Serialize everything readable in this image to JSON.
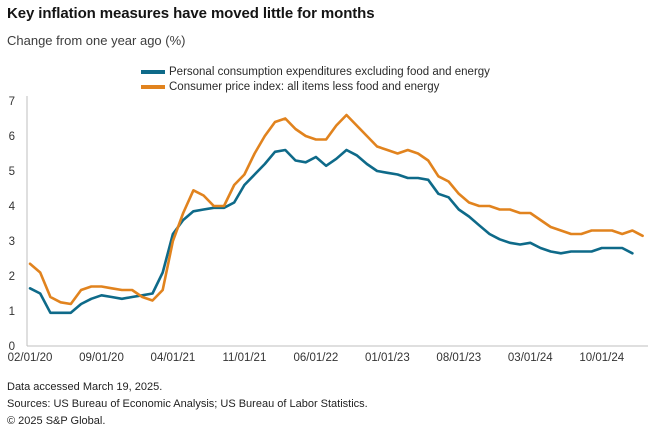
{
  "chart_data": {
    "type": "line",
    "title": "Key inflation measures have moved little for months",
    "subtitle": "Change from one year ago (%)",
    "x_start_label": "02/01/20",
    "x_tick_labels": [
      "02/01/20",
      "09/01/20",
      "04/01/21",
      "11/01/21",
      "06/01/22",
      "01/01/23",
      "08/01/23",
      "03/01/24",
      "10/01/24"
    ],
    "x_tick_interval_months": 7,
    "ylim": [
      0,
      7
    ],
    "y_ticks": [
      0,
      1,
      2,
      3,
      4,
      5,
      6,
      7
    ],
    "grid": false,
    "legend_position": "top-center",
    "axis_color": "#bfbfbf",
    "tick_label_color": "#333333",
    "series": [
      {
        "name": "Personal consumption expenditures excluding food and energy",
        "color": "#0e6a89",
        "start_month": "2020-02",
        "end_month": "2025-01",
        "values": [
          1.65,
          1.5,
          0.95,
          0.95,
          0.95,
          1.2,
          1.35,
          1.45,
          1.4,
          1.35,
          1.4,
          1.45,
          1.5,
          2.1,
          3.2,
          3.6,
          3.85,
          3.9,
          3.95,
          3.95,
          4.1,
          4.6,
          4.9,
          5.2,
          5.55,
          5.6,
          5.3,
          5.25,
          5.4,
          5.15,
          5.35,
          5.6,
          5.45,
          5.2,
          5.0,
          4.95,
          4.9,
          4.8,
          4.8,
          4.75,
          4.35,
          4.25,
          3.9,
          3.7,
          3.45,
          3.2,
          3.05,
          2.95,
          2.9,
          2.95,
          2.8,
          2.7,
          2.65,
          2.7,
          2.7,
          2.7,
          2.8,
          2.8,
          2.8,
          2.65
        ]
      },
      {
        "name": "Consumer price index: all items less food and energy",
        "color": "#e1831e",
        "start_month": "2020-02",
        "end_month": "2025-02",
        "values": [
          2.35,
          2.1,
          1.4,
          1.25,
          1.2,
          1.6,
          1.7,
          1.7,
          1.65,
          1.6,
          1.6,
          1.4,
          1.3,
          1.6,
          3.0,
          3.8,
          4.45,
          4.3,
          4.0,
          4.0,
          4.6,
          4.9,
          5.5,
          6.0,
          6.4,
          6.5,
          6.2,
          6.0,
          5.9,
          5.9,
          6.3,
          6.6,
          6.3,
          6.0,
          5.7,
          5.6,
          5.5,
          5.6,
          5.5,
          5.3,
          4.85,
          4.7,
          4.35,
          4.1,
          4.0,
          4.0,
          3.9,
          3.9,
          3.8,
          3.8,
          3.6,
          3.4,
          3.3,
          3.2,
          3.2,
          3.3,
          3.3,
          3.3,
          3.2,
          3.3,
          3.15
        ]
      }
    ]
  },
  "footer": {
    "accessed": "Data accessed March 19, 2025.",
    "sources": "Sources: US Bureau of Economic Analysis; US Bureau of Labor Statistics.",
    "copyright": "© 2025 S&P Global."
  }
}
